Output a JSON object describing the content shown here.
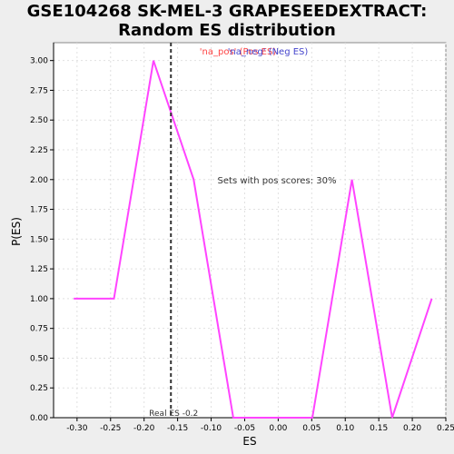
{
  "title_line1": "GSE104268 SK-MEL-3 GRAPESEEDEXTRACT:",
  "title_line2": "Random ES distribution",
  "colors": {
    "background": "#eeeeee",
    "plot_background": "#ffffff",
    "series_line": "#ff44ff",
    "pos_label": "#ff4444",
    "neg_label": "#4444cc",
    "grid": "#e0e0e0",
    "real_es_line": "#333333"
  },
  "chart_data": {
    "type": "line",
    "xlabel": "ES",
    "ylabel": "P(ES)",
    "xlim": [
      -0.335,
      0.25
    ],
    "ylim": [
      0,
      3.15
    ],
    "grid": true,
    "x_ticks": [
      "-0.30",
      "-0.25",
      "-0.20",
      "-0.15",
      "-0.10",
      "-0.05",
      "0.00",
      "0.05",
      "0.10",
      "0.15",
      "0.20",
      "0.25"
    ],
    "x_tick_values": [
      -0.3,
      -0.25,
      -0.2,
      -0.15,
      -0.1,
      -0.05,
      0.0,
      0.05,
      0.1,
      0.15,
      0.2,
      0.25
    ],
    "y_ticks": [
      "0.00",
      "0.25",
      "0.50",
      "0.75",
      "1.00",
      "1.25",
      "1.50",
      "1.75",
      "2.00",
      "2.25",
      "2.50",
      "2.75",
      "3.00"
    ],
    "y_tick_values": [
      0,
      0.25,
      0.5,
      0.75,
      1.0,
      1.25,
      1.5,
      1.75,
      2.0,
      2.25,
      2.5,
      2.75,
      3.0
    ],
    "series": [
      {
        "x": [
          -0.305,
          -0.245,
          -0.186,
          -0.126,
          -0.067,
          -0.008,
          0.051,
          0.11,
          0.17,
          0.229
        ],
        "y": [
          1.0,
          1.0,
          3.0,
          2.0,
          0.0,
          0.0,
          0.0,
          2.0,
          0.0,
          1.0
        ]
      }
    ],
    "real_es": -0.16,
    "real_es_label": "Real ES -0.2",
    "pos_label": "'na_pos' (Pos ES)",
    "neg_label": "'na_neg' (Neg ES)",
    "annotation": "Sets with pos scores: 30%"
  }
}
